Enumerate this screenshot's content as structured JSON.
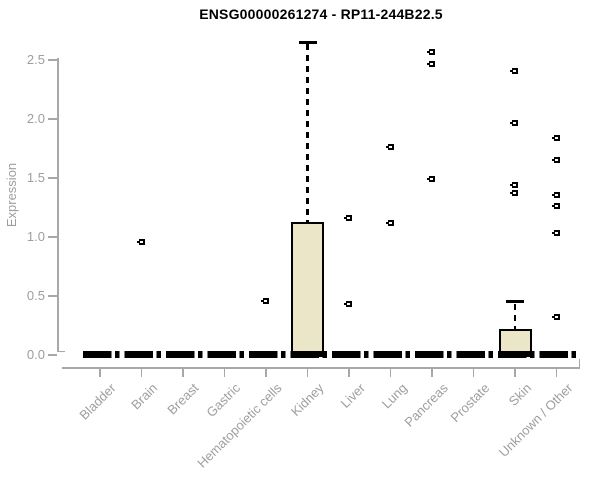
{
  "title": "ENSG00000261274 - RP11-244B22.5",
  "chart_data": {
    "type": "boxplot",
    "title": "ENSG00000261274 - RP11-244B22.5",
    "xlabel": "",
    "ylabel": "Expression",
    "ylim": [
      0,
      2.7
    ],
    "yticks": [
      0.0,
      0.5,
      1.0,
      1.5,
      2.0,
      2.5
    ],
    "grid": false,
    "legend": false,
    "categories": [
      "Bladder",
      "Brain",
      "Breast",
      "Gastric",
      "Hematopoietic cells",
      "Kidney",
      "Liver",
      "Lung",
      "Pancreas",
      "Prostate",
      "Skin",
      "Unknown / Other"
    ],
    "series": [
      {
        "category": "Bladder",
        "whisker_low": 0,
        "q1": 0,
        "median": 0,
        "q3": 0.02,
        "whisker_high": 0.02,
        "outliers": []
      },
      {
        "category": "Brain",
        "whisker_low": 0,
        "q1": 0,
        "median": 0,
        "q3": 0.02,
        "whisker_high": 0.02,
        "outliers": [
          0.96
        ]
      },
      {
        "category": "Breast",
        "whisker_low": 0,
        "q1": 0,
        "median": 0,
        "q3": 0.02,
        "whisker_high": 0.02,
        "outliers": []
      },
      {
        "category": "Gastric",
        "whisker_low": 0,
        "q1": 0,
        "median": 0,
        "q3": 0.02,
        "whisker_high": 0.02,
        "outliers": []
      },
      {
        "category": "Hematopoietic cells",
        "whisker_low": 0,
        "q1": 0,
        "median": 0,
        "q3": 0.02,
        "whisker_high": 0.02,
        "outliers": [
          0.46
        ]
      },
      {
        "category": "Kidney",
        "whisker_low": 0,
        "q1": 0,
        "median": 0.02,
        "q3": 1.13,
        "whisker_high": 2.65,
        "outliers": []
      },
      {
        "category": "Liver",
        "whisker_low": 0,
        "q1": 0,
        "median": 0,
        "q3": 0.02,
        "whisker_high": 0.02,
        "outliers": [
          1.16,
          0.43
        ]
      },
      {
        "category": "Lung",
        "whisker_low": 0,
        "q1": 0,
        "median": 0,
        "q3": 0.02,
        "whisker_high": 0.02,
        "outliers": [
          1.76,
          1.12
        ]
      },
      {
        "category": "Pancreas",
        "whisker_low": 0,
        "q1": 0,
        "median": 0,
        "q3": 0.02,
        "whisker_high": 0.02,
        "outliers": [
          2.57,
          2.47,
          1.49
        ]
      },
      {
        "category": "Prostate",
        "whisker_low": 0,
        "q1": 0,
        "median": 0,
        "q3": 0.02,
        "whisker_high": 0.02,
        "outliers": []
      },
      {
        "category": "Skin",
        "whisker_low": 0,
        "q1": 0,
        "median": 0.02,
        "q3": 0.22,
        "whisker_high": 0.45,
        "outliers": [
          2.41,
          1.97,
          1.44,
          1.37
        ]
      },
      {
        "category": "Unknown / Other",
        "whisker_low": 0,
        "q1": 0,
        "median": 0,
        "q3": 0.02,
        "whisker_high": 0.02,
        "outliers": [
          1.84,
          1.65,
          1.36,
          1.26,
          1.03,
          0.32
        ]
      }
    ],
    "colors": {
      "box_fill": "#ECE6C8",
      "box_border": "#000000",
      "whisker": "#000000",
      "outlier": "#000000",
      "axis": "#A8A8A8",
      "tick_text": "#9E9E9E",
      "title_text": "#000000"
    }
  }
}
